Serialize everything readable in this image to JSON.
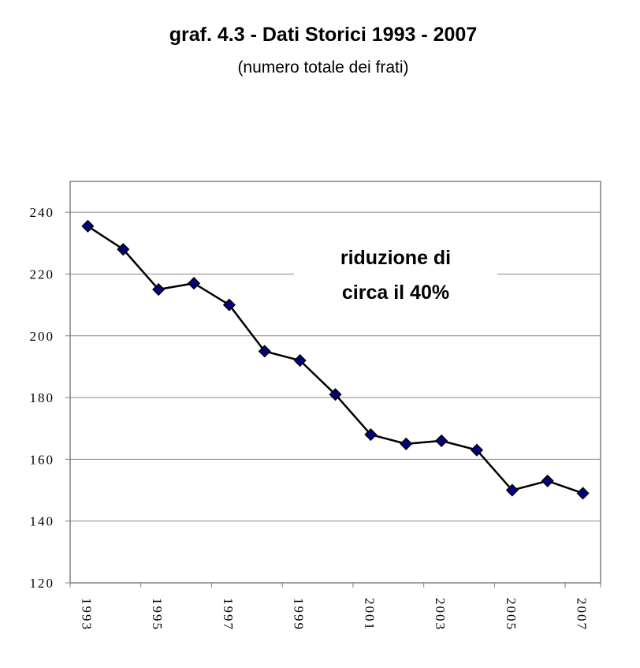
{
  "chart_data": {
    "type": "line",
    "title": "graf. 4.3 - Dati Storici 1993 - 2007",
    "subtitle": "(numero totale dei frati)",
    "annotation": [
      "riduzione di",
      "circa il 40%"
    ],
    "categories": [
      "1993",
      null,
      "1995",
      null,
      "1997",
      null,
      "1999",
      null,
      "2001",
      null,
      "2003",
      null,
      "2005",
      null,
      "2007"
    ],
    "values": [
      235.5,
      228,
      215,
      217,
      210,
      195,
      192,
      181,
      168,
      165,
      166,
      163,
      150,
      153,
      149
    ],
    "color": "#000000",
    "marker_color": "#000080",
    "ylim": [
      120,
      250
    ],
    "yticks": [
      120,
      140,
      160,
      180,
      200,
      220,
      240
    ],
    "grid": true
  }
}
